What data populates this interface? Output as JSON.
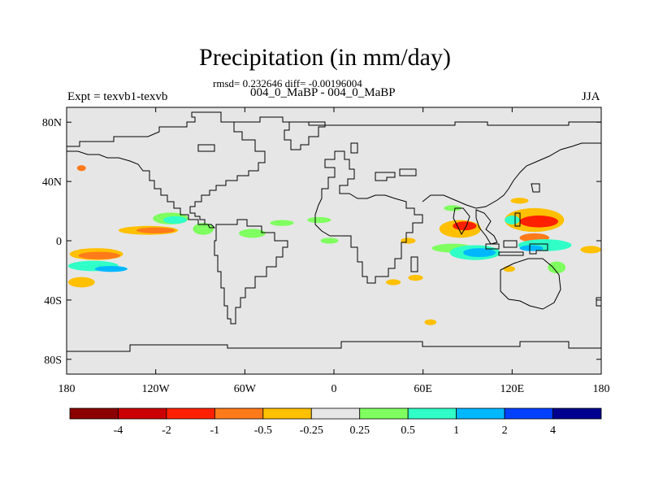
{
  "title": "Precipitation (in mm/day)",
  "stats_line": "rmsd= 0.232646 diff= -0.00196004",
  "case_line": "004_0_MaBP - 004_0_MaBP",
  "left_label": "Expt = texvb1-texvb",
  "right_label": "JJA",
  "chart_data": {
    "type": "heatmap",
    "title": "Precipitation (in mm/day)",
    "subtitle": "rmsd= 0.232646 diff= -0.00196004",
    "xlim": [
      -180,
      180
    ],
    "ylim": [
      -90,
      90
    ],
    "x_ticks": [
      {
        "value": -180,
        "label": "180"
      },
      {
        "value": -120,
        "label": "120W"
      },
      {
        "value": -60,
        "label": "60W"
      },
      {
        "value": 0,
        "label": "0"
      },
      {
        "value": 60,
        "label": "60E"
      },
      {
        "value": 120,
        "label": "120E"
      },
      {
        "value": 180,
        "label": "180"
      }
    ],
    "y_ticks": [
      {
        "value": 80,
        "label": "80N"
      },
      {
        "value": 40,
        "label": "40N"
      },
      {
        "value": 0,
        "label": "0"
      },
      {
        "value": -40,
        "label": "40S"
      },
      {
        "value": -80,
        "label": "80S"
      }
    ],
    "colorbar": {
      "colors": [
        "#8b0000",
        "#cc0000",
        "#ff2000",
        "#ff7a1a",
        "#ffc000",
        "#e6e6e6",
        "#80ff60",
        "#30ffc8",
        "#00b8ff",
        "#0040ff",
        "#000090"
      ],
      "tick_labels": [
        "-4",
        "-2",
        "-1",
        "-0.5",
        "-0.25",
        "0.25",
        "0.5",
        "1",
        "2",
        "4"
      ]
    },
    "anomalies": [
      {
        "lon": -160,
        "lat": -9,
        "rlon": 18,
        "rlat": 4,
        "color": "#ffc000"
      },
      {
        "lon": -158,
        "lat": -10,
        "rlon": 14,
        "rlat": 2.5,
        "color": "#ff7a1a"
      },
      {
        "lon": -162,
        "lat": -17,
        "rlon": 17,
        "rlat": 3.5,
        "color": "#30ffc8"
      },
      {
        "lon": -150,
        "lat": -19,
        "rlon": 11,
        "rlat": 2,
        "color": "#00b8ff"
      },
      {
        "lon": -170,
        "lat": -28,
        "rlon": 9,
        "rlat": 3.5,
        "color": "#ffc000"
      },
      {
        "lon": -125,
        "lat": 7,
        "rlon": 20,
        "rlat": 3,
        "color": "#ffc000"
      },
      {
        "lon": -120,
        "lat": 7,
        "rlon": 13,
        "rlat": 2,
        "color": "#ff7a1a"
      },
      {
        "lon": -110,
        "lat": 15,
        "rlon": 12,
        "rlat": 4,
        "color": "#80ff60"
      },
      {
        "lon": -107,
        "lat": 14,
        "rlon": 8,
        "rlat": 2.5,
        "color": "#30ffc8"
      },
      {
        "lon": -88,
        "lat": 8,
        "rlon": 7,
        "rlat": 4,
        "color": "#80ff60"
      },
      {
        "lon": -55,
        "lat": 5,
        "rlon": 9,
        "rlat": 3,
        "color": "#80ff60"
      },
      {
        "lon": -35,
        "lat": 12,
        "rlon": 8,
        "rlat": 2,
        "color": "#80ff60"
      },
      {
        "lon": -10,
        "lat": 14,
        "rlon": 8,
        "rlat": 2,
        "color": "#80ff60"
      },
      {
        "lon": -3,
        "lat": 0,
        "rlon": 6,
        "rlat": 2,
        "color": "#80ff60"
      },
      {
        "lon": 50,
        "lat": 0,
        "rlon": 5,
        "rlat": 2,
        "color": "#ffc000"
      },
      {
        "lon": 85,
        "lat": 8,
        "rlon": 14,
        "rlat": 6,
        "color": "#ffc000"
      },
      {
        "lon": 88,
        "lat": 10,
        "rlon": 8,
        "rlat": 3,
        "color": "#ff2000"
      },
      {
        "lon": 80,
        "lat": -5,
        "rlon": 14,
        "rlat": 3,
        "color": "#80ff60"
      },
      {
        "lon": 95,
        "lat": -8,
        "rlon": 17,
        "rlat": 5,
        "color": "#30ffc8"
      },
      {
        "lon": 98,
        "lat": -8,
        "rlon": 11,
        "rlat": 3,
        "color": "#00b8ff"
      },
      {
        "lon": 135,
        "lat": 14,
        "rlon": 20,
        "rlat": 8,
        "color": "#ffc000"
      },
      {
        "lon": 138,
        "lat": 13,
        "rlon": 13,
        "rlat": 4,
        "color": "#ff2000"
      },
      {
        "lon": 135,
        "lat": 2,
        "rlon": 10,
        "rlat": 3,
        "color": "#ff7a1a"
      },
      {
        "lon": 120,
        "lat": 14,
        "rlon": 5,
        "rlat": 3,
        "color": "#30ffc8"
      },
      {
        "lon": 142,
        "lat": -3,
        "rlon": 18,
        "rlat": 4,
        "color": "#30ffc8"
      },
      {
        "lon": 133,
        "lat": -5,
        "rlon": 8,
        "rlat": 2,
        "color": "#00b8ff"
      },
      {
        "lon": 150,
        "lat": -18,
        "rlon": 6,
        "rlat": 4,
        "color": "#80ff60"
      },
      {
        "lon": 173,
        "lat": -6,
        "rlon": 7,
        "rlat": 2.5,
        "color": "#ffc000"
      },
      {
        "lon": 40,
        "lat": -28,
        "rlon": 5,
        "rlat": 2,
        "color": "#ffc000"
      },
      {
        "lon": 55,
        "lat": -25,
        "rlon": 5,
        "rlat": 2,
        "color": "#ffc000"
      },
      {
        "lon": 65,
        "lat": -55,
        "rlon": 4,
        "rlat": 2,
        "color": "#ffc000"
      },
      {
        "lon": -170,
        "lat": 49,
        "rlon": 3,
        "rlat": 2,
        "color": "#ff7a1a"
      },
      {
        "lon": 80,
        "lat": 22,
        "rlon": 6,
        "rlat": 2,
        "color": "#80ff60"
      },
      {
        "lon": 125,
        "lat": 27,
        "rlon": 6,
        "rlat": 2,
        "color": "#ffc000"
      },
      {
        "lon": 118,
        "lat": -19,
        "rlon": 4,
        "rlat": 2,
        "color": "#ffc000"
      }
    ]
  }
}
